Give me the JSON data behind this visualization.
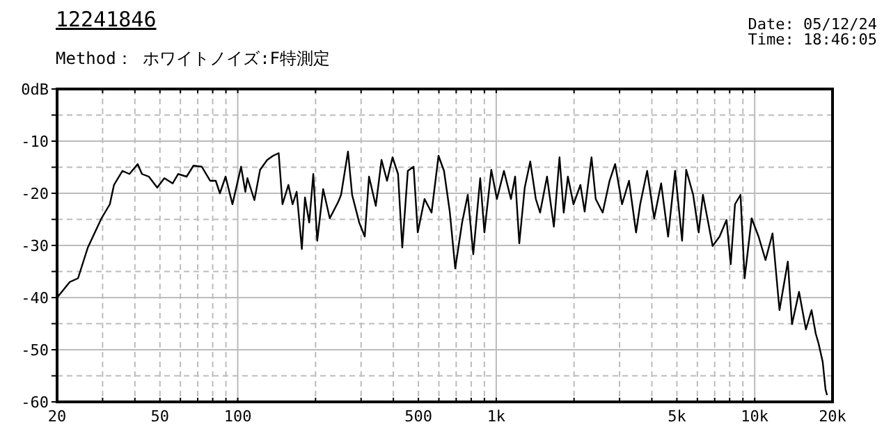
{
  "chart_data": {
    "type": "line",
    "title": "12241846",
    "subtitle": "Method： ホワイトノイズ:F特測定",
    "annotations": [
      "Date: 05/12/24",
      "Time: 18:46:05"
    ],
    "log": "x",
    "grid": true,
    "marker": "none",
    "line_style": "solid",
    "xlim": [
      20,
      20000
    ],
    "ylim": [
      -60,
      0
    ],
    "xticks": [
      20,
      {
        "value": 30,
        "label": null
      },
      {
        "value": 40,
        "label": null
      },
      50,
      {
        "value": 60,
        "label": null
      },
      {
        "value": 70,
        "label": null
      },
      {
        "value": 80,
        "label": null
      },
      {
        "value": 90,
        "label": null
      },
      100,
      {
        "value": 200,
        "label": null
      },
      {
        "value": 300,
        "label": null
      },
      {
        "value": 400,
        "label": null
      },
      500,
      {
        "value": 600,
        "label": null
      },
      {
        "value": 700,
        "label": null
      },
      {
        "value": 800,
        "label": null
      },
      {
        "value": 900,
        "label": null
      },
      {
        "value": 1000,
        "label": "1k"
      },
      {
        "value": 2000,
        "label": null
      },
      {
        "value": 3000,
        "label": null
      },
      {
        "value": 4000,
        "label": null
      },
      {
        "value": 5000,
        "label": "5k"
      },
      {
        "value": 6000,
        "label": null
      },
      {
        "value": 7000,
        "label": null
      },
      {
        "value": 8000,
        "label": null
      },
      {
        "value": 9000,
        "label": null
      },
      {
        "value": 10000,
        "label": "10k"
      },
      {
        "value": 20000,
        "label": "20k"
      }
    ],
    "yticks": [
      {
        "value": 0,
        "label": "0dB"
      },
      {
        "value": -5,
        "label": null
      },
      -10,
      {
        "value": -15,
        "label": null
      },
      -20,
      {
        "value": -25,
        "label": null
      },
      -30,
      {
        "value": -35,
        "label": null
      },
      -40,
      {
        "value": -45,
        "label": null
      },
      -50,
      {
        "value": -55,
        "label": null
      },
      -60
    ],
    "series": [
      {
        "color": "#000000",
        "x": [
          20,
          22.4,
          24.1,
          26.3,
          29.7,
          32,
          33.2,
          35.8,
          38.1,
          41,
          42.6,
          45.3,
          48.8,
          52,
          56,
          58.8,
          63.4,
          67.4,
          72.6,
          78.2,
          82.2,
          85.3,
          89.7,
          95.4,
          103,
          107,
          109,
          116,
          122,
          130,
          137,
          144,
          149,
          157,
          163,
          169,
          177,
          182,
          189,
          196,
          203,
          214,
          227,
          245,
          251,
          267,
          277,
          295,
          310,
          322,
          342,
          360,
          378,
          397,
          417,
          433,
          455,
          479,
          497,
          528,
          562,
          598,
          628,
          661,
          694,
          738,
          776,
          815,
          867,
          900,
          957,
          1006,
          1071,
          1140,
          1183,
          1228,
          1289,
          1354,
          1423,
          1478,
          1572,
          1671,
          1757,
          1824,
          1893,
          1990,
          2117,
          2198,
          2337,
          2426,
          2581,
          2745,
          2884,
          3068,
          3263,
          3475,
          3605,
          3836,
          4084,
          4345,
          4623,
          4920,
          5236,
          5432,
          5780,
          6070,
          6306,
          6873,
          7311,
          7780,
          8075,
          8390,
          8810,
          9140,
          9730,
          10350,
          11010,
          11720,
          12470,
          13430,
          13940,
          14840,
          15780,
          16590,
          17220,
          17660,
          18320,
          18790,
          19050
        ],
        "values": [
          -40,
          -37,
          -36.3,
          -30.4,
          -24.8,
          -22.1,
          -18.4,
          -15.7,
          -16.3,
          -14.4,
          -16.3,
          -16.8,
          -18.9,
          -17.1,
          -18.1,
          -16.3,
          -16.8,
          -14.7,
          -14.9,
          -17.6,
          -17.6,
          -20,
          -16.8,
          -22.1,
          -14.9,
          -19.7,
          -17.1,
          -21.3,
          -15.5,
          -13.6,
          -12.8,
          -12.3,
          -22.1,
          -18.4,
          -22.1,
          -19.7,
          -30.7,
          -20.8,
          -25.6,
          -16.3,
          -29.1,
          -19.2,
          -24.8,
          -21.6,
          -20.3,
          -12,
          -20.3,
          -25.6,
          -28.3,
          -16.8,
          -22.4,
          -13.6,
          -17.6,
          -13.1,
          -16.3,
          -30.4,
          -15.7,
          -14.9,
          -27.5,
          -21.1,
          -23.7,
          -12.8,
          -15.7,
          -23.5,
          -34.4,
          -25.6,
          -20.3,
          -31.7,
          -17.1,
          -27.5,
          -15.5,
          -21.1,
          -15.7,
          -21.1,
          -16.8,
          -29.6,
          -18.9,
          -13.9,
          -21.1,
          -23.7,
          -16.8,
          -26.4,
          -13.1,
          -23.7,
          -16.8,
          -22.1,
          -18.4,
          -23.5,
          -13.1,
          -21.1,
          -23.7,
          -17.6,
          -14.4,
          -22.1,
          -17.6,
          -27.5,
          -22.1,
          -15.7,
          -24.8,
          -18.1,
          -28.3,
          -15.7,
          -29.1,
          -15.5,
          -20.3,
          -27.5,
          -20.3,
          -30.1,
          -28.3,
          -25.1,
          -33.6,
          -22.1,
          -20.3,
          -36.3,
          -24.8,
          -28.3,
          -32.8,
          -27.7,
          -42.4,
          -33.1,
          -45.1,
          -38.9,
          -46.1,
          -42.4,
          -46.9,
          -48.8,
          -52.3,
          -57.6,
          -58.7
        ]
      }
    ]
  }
}
